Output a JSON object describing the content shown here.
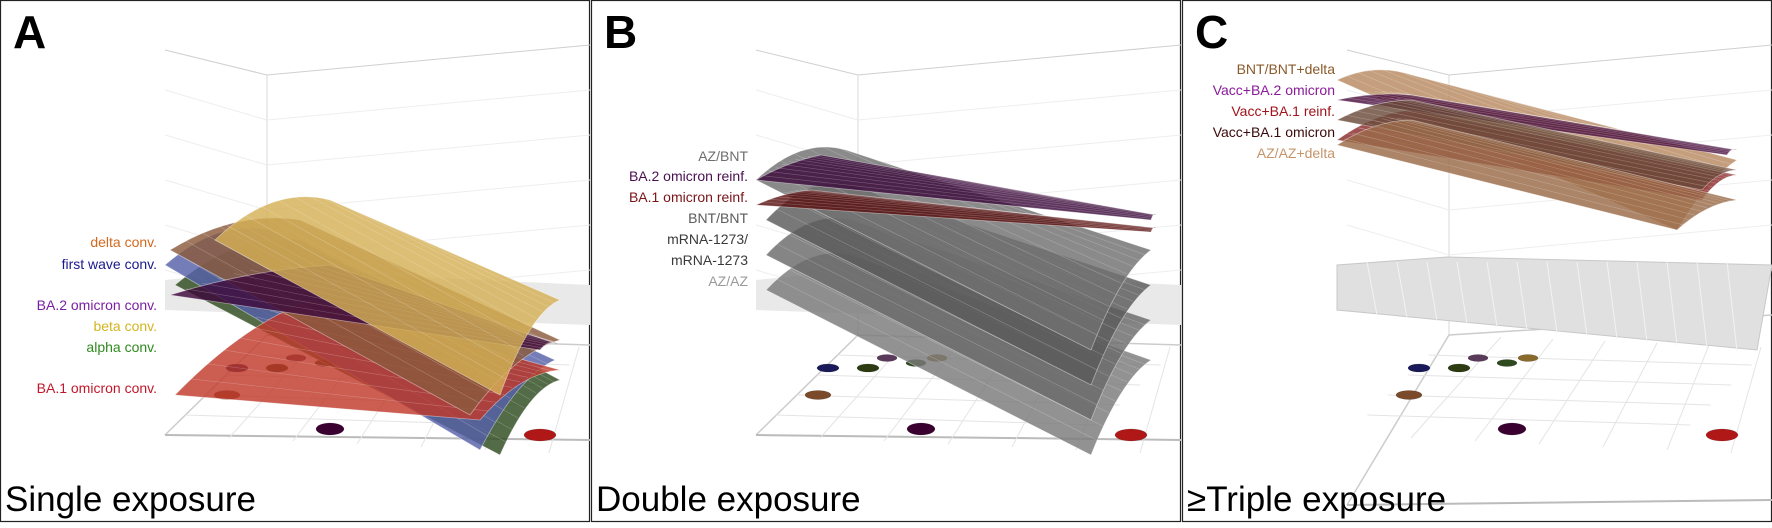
{
  "panels": [
    {
      "letter": "A",
      "title": "Single exposure",
      "labels": [
        {
          "text": "delta conv.",
          "color": "#d2691e"
        },
        {
          "text": "first wave conv.",
          "color": "#1a1a8c"
        },
        {
          "text": "BA.2 omicron conv.",
          "color": "#7b1fa2"
        },
        {
          "text": "beta conv.",
          "color": "#d4b422"
        },
        {
          "text": "alpha conv.",
          "color": "#2e8b1e"
        },
        {
          "text": "BA.1 omicron conv.",
          "color": "#c0182a"
        }
      ],
      "surfaces": [
        {
          "color": "#2e4a1e"
        },
        {
          "color": "#5560a8"
        },
        {
          "color": "#c0392b"
        },
        {
          "color": "#8a5a3c"
        },
        {
          "color": "#3d0a3a"
        },
        {
          "color": "#d4b055"
        }
      ]
    },
    {
      "letter": "B",
      "title": "Double exposure",
      "labels": [
        {
          "text": "AZ/BNT",
          "color": "#6e6e6e"
        },
        {
          "text": "BA.2 omicron reinf.",
          "color": "#4a1050"
        },
        {
          "text": "BA.1 omicron reinf.",
          "color": "#7a1418"
        },
        {
          "text": "BNT/BNT",
          "color": "#5a5a5a"
        },
        {
          "text": "mRNA-1273/",
          "color": "#3a3a3a"
        },
        {
          "text": "mRNA-1273",
          "color": "#3a3a3a"
        },
        {
          "text": "AZ/AZ",
          "color": "#9a9a9a"
        }
      ],
      "surfaces": [
        {
          "color": "#7a7a7a"
        },
        {
          "color": "#6a6a6a"
        },
        {
          "color": "#5a5a5a"
        },
        {
          "color": "#707070"
        },
        {
          "color": "#3a0a3a"
        },
        {
          "color": "#5a1010"
        }
      ]
    },
    {
      "letter": "C",
      "title": "≥Triple exposure",
      "labels": [
        {
          "text": "BNT/BNT+delta",
          "color": "#8b5a2b"
        },
        {
          "text": "Vacc+BA.2 omicron",
          "color": "#8a1a9a"
        },
        {
          "text": "Vacc+BA.1 reinf.",
          "color": "#a0141c"
        },
        {
          "text": "Vacc+BA.1 omicron",
          "color": "#3a0a0a"
        },
        {
          "text": "AZ/AZ+delta",
          "color": "#c4956a"
        }
      ],
      "surfaces": [
        {
          "color": "#b88a60"
        },
        {
          "color": "#8a2a2a"
        },
        {
          "color": "#4a1040"
        },
        {
          "color": "#6a4a3a"
        },
        {
          "color": "#9a6a48"
        }
      ]
    }
  ],
  "antigen_dots": [
    {
      "color": "#1a1a5a"
    },
    {
      "color": "#2e3a12"
    },
    {
      "color": "#5a3a5a"
    },
    {
      "color": "#2e4a1e"
    },
    {
      "color": "#8a6a2a"
    },
    {
      "color": "#7a4a2a"
    },
    {
      "color": "#3a0030"
    },
    {
      "color": "#b01818"
    }
  ]
}
